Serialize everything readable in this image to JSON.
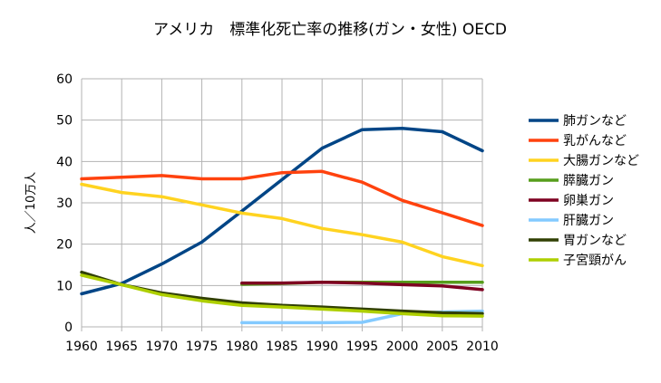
{
  "chart_data": {
    "type": "line",
    "title": "アメリカ　標準化死亡率の推移(ガン・女性) OECD",
    "ylabel": "人／10万人",
    "xlabel": "",
    "x": [
      1960,
      1965,
      1970,
      1975,
      1980,
      1985,
      1990,
      1995,
      2000,
      2005,
      2010
    ],
    "xlim": [
      1960,
      2010
    ],
    "ylim": [
      0,
      60
    ],
    "yticks": [
      0,
      10,
      20,
      30,
      40,
      50,
      60
    ],
    "grid": true,
    "legend_position": "right",
    "series": [
      {
        "name": "肺ガンなど",
        "color": "#004586",
        "values": [
          8,
          10.5,
          15.2,
          20.5,
          28,
          35.6,
          43.2,
          47.7,
          48,
          47.2,
          42.6
        ]
      },
      {
        "name": "乳がんなど",
        "color": "#ff420e",
        "values": [
          35.8,
          36.2,
          36.6,
          35.8,
          35.8,
          37.3,
          37.6,
          35,
          30.6,
          27.6,
          24.5
        ]
      },
      {
        "name": "大腸ガンなど",
        "color": "#ffd320",
        "values": [
          34.5,
          32.5,
          31.5,
          29.5,
          27.5,
          26.2,
          23.8,
          22.3,
          20.5,
          17,
          14.8
        ]
      },
      {
        "name": "膵臓ガン",
        "color": "#579d1c",
        "values": [
          null,
          null,
          null,
          null,
          10.3,
          10.5,
          10.8,
          10.8,
          10.8,
          10.8,
          10.8
        ]
      },
      {
        "name": "卵巣ガン",
        "color": "#7e0021",
        "values": [
          null,
          null,
          null,
          null,
          10.6,
          10.6,
          10.8,
          10.6,
          10.2,
          9.9,
          9
        ]
      },
      {
        "name": "肝臓ガン",
        "color": "#83caff",
        "values": [
          null,
          null,
          null,
          null,
          1,
          1,
          1,
          1.1,
          3.2,
          3.6,
          3.8
        ]
      },
      {
        "name": "胃ガンなど",
        "color": "#314004",
        "values": [
          13.2,
          10.2,
          8.2,
          6.9,
          5.8,
          5.2,
          4.8,
          4.3,
          3.8,
          3.4,
          3.2
        ]
      },
      {
        "name": "子宮頸がん",
        "color": "#aecf00",
        "values": [
          12.5,
          10.2,
          7.8,
          6.3,
          5.2,
          4.8,
          4.3,
          3.8,
          3.2,
          2.7,
          2.6
        ]
      }
    ]
  }
}
